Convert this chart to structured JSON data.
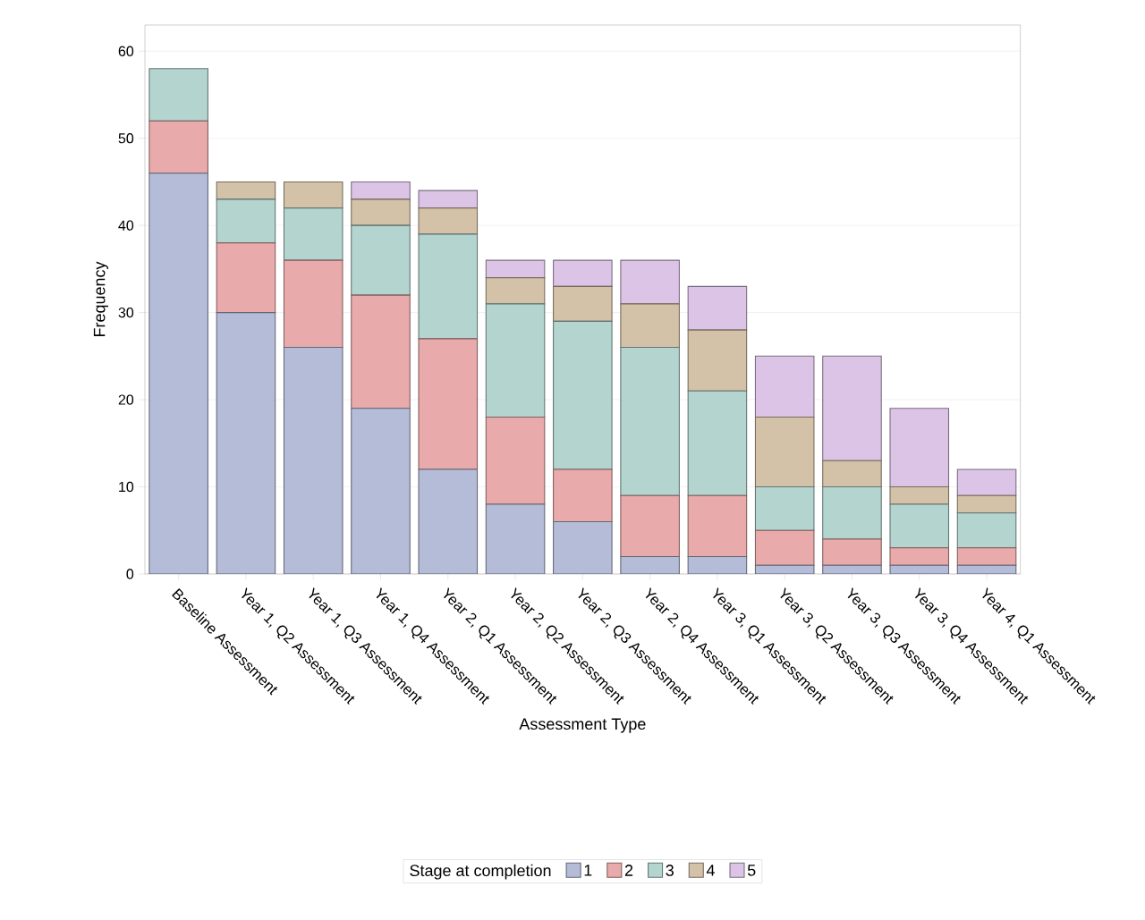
{
  "chart_data": {
    "type": "bar",
    "stacked": true,
    "xlabel": "Assessment Type",
    "ylabel": "Frequency",
    "legend_title": "Stage at completion",
    "legend": "bottom",
    "grid": "y",
    "categories": [
      "Baseline Assessment",
      "Year 1, Q2 Assessment",
      "Year 1, Q3 Assessment",
      "Year 1, Q4 Assessment",
      "Year 2, Q1 Assessment",
      "Year 2, Q2 Assessment",
      "Year 2, Q3 Assessment",
      "Year 2, Q4 Assessment",
      "Year 3, Q1 Assessment",
      "Year 3, Q2 Assessment",
      "Year 3, Q3 Assessment",
      "Year 3, Q4 Assessment",
      "Year 4, Q1 Assessment"
    ],
    "ylim": [
      0,
      63
    ],
    "yticks": [
      0,
      10,
      20,
      30,
      40,
      50,
      60
    ],
    "series": [
      {
        "name": "1",
        "color": "#b4bcd8",
        "values": [
          46,
          30,
          26,
          19,
          12,
          8,
          6,
          2,
          2,
          1,
          1,
          1,
          1
        ]
      },
      {
        "name": "2",
        "color": "#e8aaaa",
        "values": [
          6,
          8,
          10,
          13,
          15,
          10,
          6,
          7,
          7,
          4,
          3,
          2,
          2
        ]
      },
      {
        "name": "3",
        "color": "#b4d4d0",
        "values": [
          6,
          5,
          6,
          8,
          12,
          13,
          17,
          17,
          12,
          5,
          6,
          5,
          4
        ]
      },
      {
        "name": "4",
        "color": "#d4c2a8",
        "values": [
          0,
          2,
          3,
          3,
          3,
          3,
          4,
          5,
          7,
          8,
          3,
          2,
          2
        ]
      },
      {
        "name": "5",
        "color": "#dcc4e6",
        "values": [
          0,
          0,
          0,
          2,
          2,
          2,
          3,
          5,
          5,
          7,
          12,
          9,
          3
        ]
      }
    ]
  }
}
